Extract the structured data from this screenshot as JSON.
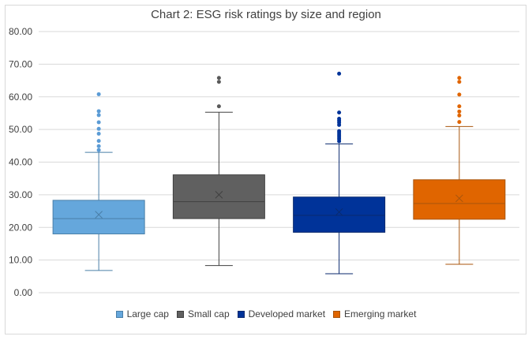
{
  "chart_data": {
    "type": "boxplot",
    "title": "Chart 2: ESG risk ratings by size and region",
    "xlabel": "",
    "ylabel": "",
    "ylim": [
      0,
      80
    ],
    "yticks": [
      0,
      10,
      20,
      30,
      40,
      50,
      60,
      70,
      80
    ],
    "ytick_labels": [
      "0.00",
      "10.00",
      "20.00",
      "30.00",
      "40.00",
      "50.00",
      "60.00",
      "70.00",
      "80.00"
    ],
    "grid": true,
    "legend_position": "bottom",
    "series": [
      {
        "name": "Large cap",
        "color": "#5b9bd5",
        "fill": "#65a7dc",
        "line": "#4a7fa8",
        "min": 6.8,
        "q1": 18.0,
        "median": 22.7,
        "mean": 23.9,
        "q3": 28.3,
        "max": 43.0,
        "outliers": [
          43.7,
          44.9,
          46.5,
          48.7,
          50.2,
          52.2,
          54.4,
          55.6,
          60.8
        ]
      },
      {
        "name": "Small cap",
        "color": "#595959",
        "fill": "#606060",
        "line": "#404040",
        "min": 8.3,
        "q1": 22.7,
        "median": 27.9,
        "mean": 30.0,
        "q3": 36.1,
        "max": 55.3,
        "outliers": [
          57.1,
          64.6,
          65.8
        ]
      },
      {
        "name": "Developed market",
        "color": "#003399",
        "fill": "#003399",
        "line": "#0a2a6e",
        "min": 5.8,
        "q1": 18.5,
        "median": 23.7,
        "mean": 24.7,
        "q3": 29.3,
        "max": 45.6,
        "outliers": [
          46.4,
          47.1,
          47.7,
          48.3,
          48.9,
          49.5,
          51.4,
          52.1,
          52.7,
          53.3,
          55.2,
          67.1
        ]
      },
      {
        "name": "Emerging market",
        "color": "#e06500",
        "fill": "#e06500",
        "line": "#a8550d",
        "min": 8.7,
        "q1": 22.5,
        "median": 27.3,
        "mean": 28.9,
        "q3": 34.6,
        "max": 50.9,
        "outliers": [
          52.3,
          54.3,
          55.5,
          57.1,
          60.7,
          64.6,
          65.8
        ]
      }
    ]
  }
}
